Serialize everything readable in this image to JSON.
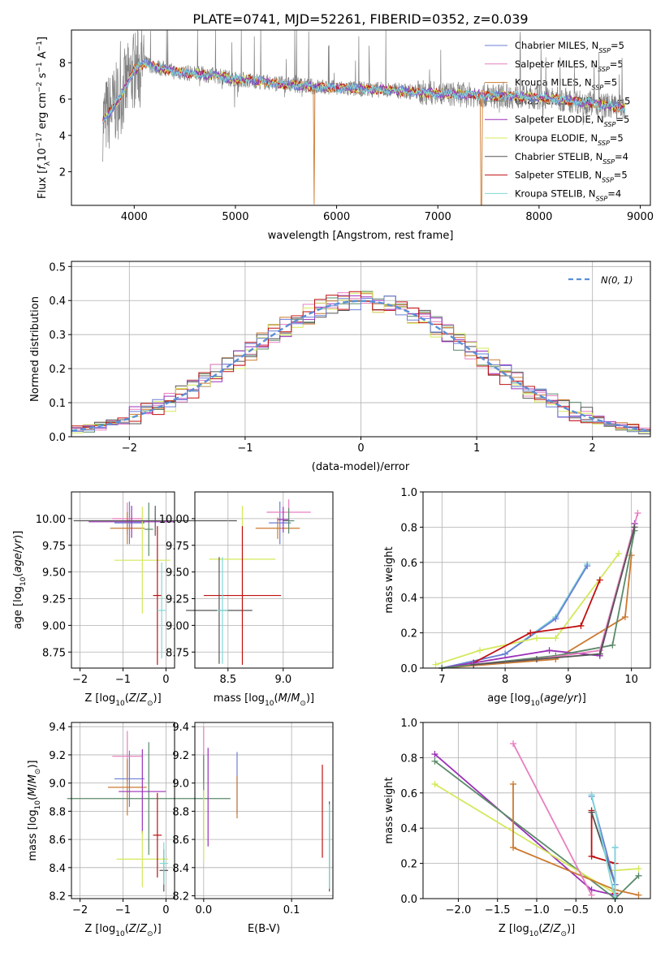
{
  "colors": {
    "data": "#808080",
    "chabrier_miles": "#6a7fd6",
    "salpeter_miles": "#e87fbf",
    "kroupa_miles": "#cc7a30",
    "chabrier_elodie": "#5b8a6a",
    "salpeter_elodie": "#9b30b8",
    "kroupa_elodie": "#d4e85a",
    "chabrier_stelib": "#555555",
    "salpeter_stelib": "#c01010",
    "kroupa_stelib": "#7ed8d8",
    "gaussian": "#5a8fd6",
    "grid": "#b0b0b0"
  },
  "chart_data": [
    {
      "type": "line",
      "title": "PLATE=0741, MJD=52261, FIBERID=0352, z=0.039",
      "xlabel": "wavelength [Angstrom, rest frame]",
      "ylabel": "Flux [f_λ 10^-17 erg cm^-2 s^-1 A^-1]",
      "xlim": [
        3380,
        9100
      ],
      "ylim": [
        0.15,
        9.8
      ],
      "xticks": [
        "4000",
        "5000",
        "6000",
        "7000",
        "8000",
        "9000"
      ],
      "yticks": [
        "2",
        "4",
        "6",
        "8"
      ],
      "legend_position": "top-right",
      "legend": [
        {
          "key": "chabrier_miles",
          "label": "Chabrier MILES, N",
          "sub": "SSP",
          "tail": "=5"
        },
        {
          "key": "salpeter_miles",
          "label": "Salpeter MILES, N",
          "sub": "SSP",
          "tail": "=5"
        },
        {
          "key": "kroupa_miles",
          "label": "Kroupa MILES, N",
          "sub": "SSP",
          "tail": "=5"
        },
        {
          "key": "chabrier_elodie",
          "label": "Chabrier ELODIE, N",
          "sub": "SSP",
          "tail": "=5"
        },
        {
          "key": "salpeter_elodie",
          "label": "Salpeter ELODIE, N",
          "sub": "SSP",
          "tail": "=5"
        },
        {
          "key": "kroupa_elodie",
          "label": "Kroupa ELODIE, N",
          "sub": "SSP",
          "tail": "=5"
        },
        {
          "key": "chabrier_stelib",
          "label": "Chabrier STELIB, N",
          "sub": "SSP",
          "tail": "=4"
        },
        {
          "key": "salpeter_stelib",
          "label": "Salpeter STELIB, N",
          "sub": "SSP",
          "tail": "=5"
        },
        {
          "key": "kroupa_stelib",
          "label": "Kroupa STELIB, N",
          "sub": "SSP",
          "tail": "=4"
        }
      ],
      "continuum": [
        [
          3690,
          4.8
        ],
        [
          3800,
          5.6
        ],
        [
          3900,
          6.5
        ],
        [
          4000,
          7.6
        ],
        [
          4100,
          8.0
        ],
        [
          4200,
          7.8
        ],
        [
          4400,
          7.5
        ],
        [
          4600,
          7.4
        ],
        [
          4800,
          7.3
        ],
        [
          5000,
          7.1
        ],
        [
          5200,
          7.0
        ],
        [
          5500,
          6.8
        ],
        [
          6000,
          6.6
        ],
        [
          6500,
          6.5
        ],
        [
          7000,
          6.3
        ],
        [
          7500,
          6.2
        ],
        [
          8000,
          6.1
        ],
        [
          8500,
          5.8
        ],
        [
          8850,
          5.5
        ]
      ]
    },
    {
      "type": "step",
      "xlabel": "(data-model)/error",
      "ylabel": "Normed distribution",
      "xlim": [
        -2.5,
        2.5
      ],
      "ylim": [
        0,
        0.515
      ],
      "xticks": [
        "-2",
        "-1",
        "0",
        "1",
        "2"
      ],
      "yticks": [
        "0.0",
        "0.1",
        "0.2",
        "0.3",
        "0.4",
        "0.5"
      ],
      "legend_position": "top-right",
      "legend_label": "N(0, 1)",
      "bin_width": 0.1
    },
    {
      "type": "scatter",
      "xlabel": "Z [log10(Z/Z_sun)]",
      "ylabel": "age [log10(age/yr)]",
      "xlim": [
        -2.2,
        0.2
      ],
      "ylim": [
        8.6,
        10.25
      ],
      "xticks": [
        "-2",
        "-1",
        "0"
      ],
      "yticks": [
        "8.75",
        "9.00",
        "9.25",
        "9.50",
        "9.75",
        "10.00"
      ],
      "points": [
        {
          "key": "chabrier_miles",
          "x": -0.85,
          "y": 9.96,
          "xerr": 0.35,
          "yerr": 0.2
        },
        {
          "key": "salpeter_miles",
          "x": -0.9,
          "y": 10.0,
          "xerr": 0.35,
          "yerr": 0.15
        },
        {
          "key": "kroupa_miles",
          "x": -0.9,
          "y": 9.91,
          "xerr": 0.4,
          "yerr": 0.15
        },
        {
          "key": "chabrier_elodie",
          "x": -0.4,
          "y": 9.9,
          "xerr": 0.1,
          "yerr": 0.25
        },
        {
          "key": "salpeter_elodie",
          "x": -0.8,
          "y": 9.97,
          "xerr": 1.0,
          "yerr": 0.15
        },
        {
          "key": "kroupa_elodie",
          "x": -0.55,
          "y": 9.61,
          "xerr": 0.65,
          "yerr": 0.5
        },
        {
          "key": "chabrier_stelib",
          "x": -0.25,
          "y": 9.98,
          "xerr": 1.9,
          "yerr": 0.14
        },
        {
          "key": "salpeter_stelib",
          "x": -0.2,
          "y": 9.28,
          "xerr": 0.1,
          "yerr": 0.65
        },
        {
          "key": "kroupa_stelib",
          "x": -0.1,
          "y": 9.14,
          "xerr": 0.1,
          "yerr": 0.45
        }
      ]
    },
    {
      "type": "scatter",
      "xlabel": "mass [log10(M/M_sun)]",
      "ylabel": "",
      "xlim": [
        8.2,
        9.45
      ],
      "ylim": [
        8.6,
        10.25
      ],
      "xticks": [
        "8.5",
        "9.0"
      ],
      "yticks": [
        "8.75",
        "9.00",
        "9.25",
        "9.50",
        "9.75",
        "10.00"
      ],
      "points": [
        {
          "key": "chabrier_miles",
          "x": 8.97,
          "y": 9.96,
          "xerr": 0.1,
          "yerr": 0.2
        },
        {
          "key": "salpeter_miles",
          "x": 9.05,
          "y": 10.06,
          "xerr": 0.2,
          "yerr": 0.12
        },
        {
          "key": "kroupa_miles",
          "x": 8.95,
          "y": 9.91,
          "xerr": 0.2,
          "yerr": 0.1
        },
        {
          "key": "chabrier_elodie",
          "x": 9.05,
          "y": 9.98,
          "xerr": 0.05,
          "yerr": 0.12
        },
        {
          "key": "salpeter_elodie",
          "x": 9.0,
          "y": 9.99,
          "xerr": 0.05,
          "yerr": 0.12
        },
        {
          "key": "kroupa_elodie",
          "x": 8.63,
          "y": 9.62,
          "xerr": 0.3,
          "yerr": 0.5
        },
        {
          "key": "chabrier_stelib",
          "x": 8.42,
          "y": 9.14,
          "xerr": 0.3,
          "yerr": 0.5
        },
        {
          "key": "salpeter_stelib",
          "x": 8.63,
          "y": 9.28,
          "xerr": 0.35,
          "yerr": 0.65
        },
        {
          "key": "kroupa_stelib",
          "x": 8.45,
          "y": 9.14,
          "xerr": 0.05,
          "yerr": 0.5
        }
      ]
    },
    {
      "type": "line",
      "xlabel": "age [log10(age/yr)]",
      "ylabel": "mass weight",
      "xlim": [
        6.7,
        10.3
      ],
      "ylim": [
        0,
        1
      ],
      "xticks": [
        "7",
        "8",
        "9",
        "10"
      ],
      "yticks": [
        "0.0",
        "0.2",
        "0.4",
        "0.6",
        "0.8",
        "1.0"
      ],
      "series": [
        {
          "key": "kroupa_stelib",
          "x": [
            7.0,
            8.0,
            8.8,
            9.3
          ],
          "y": [
            0.0,
            0.08,
            0.29,
            0.59
          ]
        },
        {
          "key": "chabrier_miles",
          "x": [
            7.0,
            8.0,
            8.8,
            9.3
          ],
          "y": [
            0.0,
            0.08,
            0.28,
            0.58
          ]
        },
        {
          "key": "kroupa_elodie",
          "x": [
            6.9,
            7.6,
            8.5,
            8.8,
            9.8
          ],
          "y": [
            0.02,
            0.1,
            0.17,
            0.17,
            0.65
          ]
        },
        {
          "key": "salpeter_stelib",
          "x": [
            7.5,
            8.4,
            9.2,
            9.5
          ],
          "y": [
            0.03,
            0.2,
            0.24,
            0.5
          ]
        },
        {
          "key": "kroupa_miles",
          "x": [
            7.0,
            8.8,
            9.9,
            10.0
          ],
          "y": [
            0.0,
            0.05,
            0.29,
            0.64
          ]
        },
        {
          "key": "salpeter_elodie",
          "x": [
            7.0,
            8.7,
            9.5,
            10.05
          ],
          "y": [
            0.0,
            0.1,
            0.07,
            0.82
          ]
        },
        {
          "key": "chabrier_elodie",
          "x": [
            7.0,
            8.8,
            9.7,
            10.05
          ],
          "y": [
            0.0,
            0.07,
            0.13,
            0.78
          ]
        },
        {
          "key": "salpeter_miles",
          "x": [
            7.5,
            8.5,
            9.5,
            10.1
          ],
          "y": [
            0.02,
            0.05,
            0.1,
            0.88
          ]
        },
        {
          "key": "chabrier_stelib",
          "x": [
            7.5,
            8.5,
            9.5,
            10.05
          ],
          "y": [
            0.02,
            0.05,
            0.08,
            0.8
          ]
        }
      ]
    },
    {
      "type": "scatter",
      "xlabel": "Z [log10(Z/Z_sun)]",
      "ylabel": "mass [log10(M/M_sun)]",
      "xlim": [
        -2.2,
        0.2
      ],
      "ylim": [
        8.18,
        9.43
      ],
      "xticks": [
        "-2",
        "-1",
        "0"
      ],
      "yticks": [
        "8.2",
        "8.4",
        "8.6",
        "8.8",
        "9.0",
        "9.2",
        "9.4"
      ],
      "points": [
        {
          "key": "chabrier_miles",
          "x": -0.85,
          "y": 9.03,
          "xerr": 0.35,
          "yerr": 0.2
        },
        {
          "key": "salpeter_miles",
          "x": -0.9,
          "y": 9.19,
          "xerr": 0.35,
          "yerr": 0.18
        },
        {
          "key": "kroupa_miles",
          "x": -0.9,
          "y": 8.97,
          "xerr": 0.45,
          "yerr": 0.2
        },
        {
          "key": "chabrier_elodie",
          "x": -0.4,
          "y": 8.89,
          "xerr": 1.9,
          "yerr": 0.4
        },
        {
          "key": "salpeter_elodie",
          "x": -0.55,
          "y": 8.94,
          "xerr": 0.55,
          "yerr": 0.3
        },
        {
          "key": "kroupa_elodie",
          "x": -0.55,
          "y": 8.46,
          "xerr": 0.6,
          "yerr": 0.2
        },
        {
          "key": "chabrier_stelib",
          "x": -0.05,
          "y": 8.38,
          "xerr": 0.1,
          "yerr": 0.15
        },
        {
          "key": "salpeter_stelib",
          "x": -0.2,
          "y": 8.63,
          "xerr": 0.1,
          "yerr": 0.3
        },
        {
          "key": "kroupa_stelib",
          "x": -0.05,
          "y": 8.43,
          "xerr": 0.1,
          "yerr": 0.15
        }
      ]
    },
    {
      "type": "scatter",
      "xlabel": "E(B-V)",
      "ylabel": "",
      "xlim": [
        -0.01,
        0.147
      ],
      "ylim": [
        8.18,
        9.43
      ],
      "xticks": [
        "0.0",
        "0.1"
      ],
      "yticks": [
        "8.2",
        "8.4",
        "8.6",
        "8.8",
        "9.0",
        "9.2",
        "9.4"
      ],
      "points": [
        {
          "key": "chabrier_miles",
          "x": 0.038,
          "y": 9.0,
          "yerr": 0.22
        },
        {
          "key": "salpeter_miles",
          "x": 0.0,
          "y": 9.2,
          "yerr": 0.2
        },
        {
          "key": "kroupa_miles",
          "x": 0.038,
          "y": 8.9,
          "yerr": 0.15
        },
        {
          "key": "chabrier_elodie",
          "x": 0.0,
          "y": 8.9,
          "yerr": 0.3
        },
        {
          "key": "salpeter_elodie",
          "x": 0.005,
          "y": 8.9,
          "yerr": 0.35
        },
        {
          "key": "kroupa_elodie",
          "x": 0.0,
          "y": 8.7,
          "yerr": 0.25
        },
        {
          "key": "chabrier_stelib",
          "x": 0.143,
          "y": 8.55,
          "yerr": 0.32
        },
        {
          "key": "salpeter_stelib",
          "x": 0.135,
          "y": 8.8,
          "yerr": 0.33
        },
        {
          "key": "kroupa_stelib",
          "x": 0.143,
          "y": 8.55,
          "yerr": 0.3
        }
      ]
    },
    {
      "type": "line",
      "xlabel": "Z [log10(Z/Z_sun)]",
      "ylabel": "mass weight",
      "xlim": [
        -2.45,
        0.45
      ],
      "ylim": [
        0,
        1
      ],
      "xticks": [
        "-2.0",
        "-1.5",
        "-1.0",
        "-0.5",
        "0.0"
      ],
      "yticks": [
        "0.0",
        "0.2",
        "0.4",
        "0.6",
        "0.8",
        "1.0"
      ],
      "series": [
        {
          "key": "salpeter_elodie",
          "x": [
            -2.3,
            -0.3,
            0.0
          ],
          "y": [
            0.82,
            0.05,
            0.02
          ]
        },
        {
          "key": "chabrier_elodie",
          "x": [
            -2.3,
            0.0,
            0.3
          ],
          "y": [
            0.78,
            0.0,
            0.13
          ]
        },
        {
          "key": "kroupa_elodie",
          "x": [
            -2.3,
            0.0,
            0.0,
            0.3
          ],
          "y": [
            0.65,
            0.03,
            0.16,
            0.17
          ]
        },
        {
          "key": "kroupa_miles",
          "x": [
            -1.3,
            -1.3,
            0.0,
            0.3
          ],
          "y": [
            0.65,
            0.29,
            0.05,
            0.02
          ]
        },
        {
          "key": "salpeter_miles",
          "x": [
            -1.3,
            -0.3
          ],
          "y": [
            0.88,
            0.02
          ]
        },
        {
          "key": "salpeter_stelib",
          "x": [
            -0.3,
            -0.3,
            0.0,
            0.0
          ],
          "y": [
            0.5,
            0.24,
            0.2,
            0.03
          ]
        },
        {
          "key": "chabrier_stelib",
          "x": [
            -0.3,
            0.0,
            0.0
          ],
          "y": [
            0.49,
            0.08,
            0.0
          ]
        },
        {
          "key": "chabrier_miles",
          "x": [
            -0.3,
            0.0,
            0.0
          ],
          "y": [
            0.58,
            0.08,
            0.29
          ]
        },
        {
          "key": "kroupa_stelib",
          "x": [
            -0.3,
            0.0,
            0.0
          ],
          "y": [
            0.59,
            0.0,
            0.29
          ]
        }
      ]
    }
  ]
}
